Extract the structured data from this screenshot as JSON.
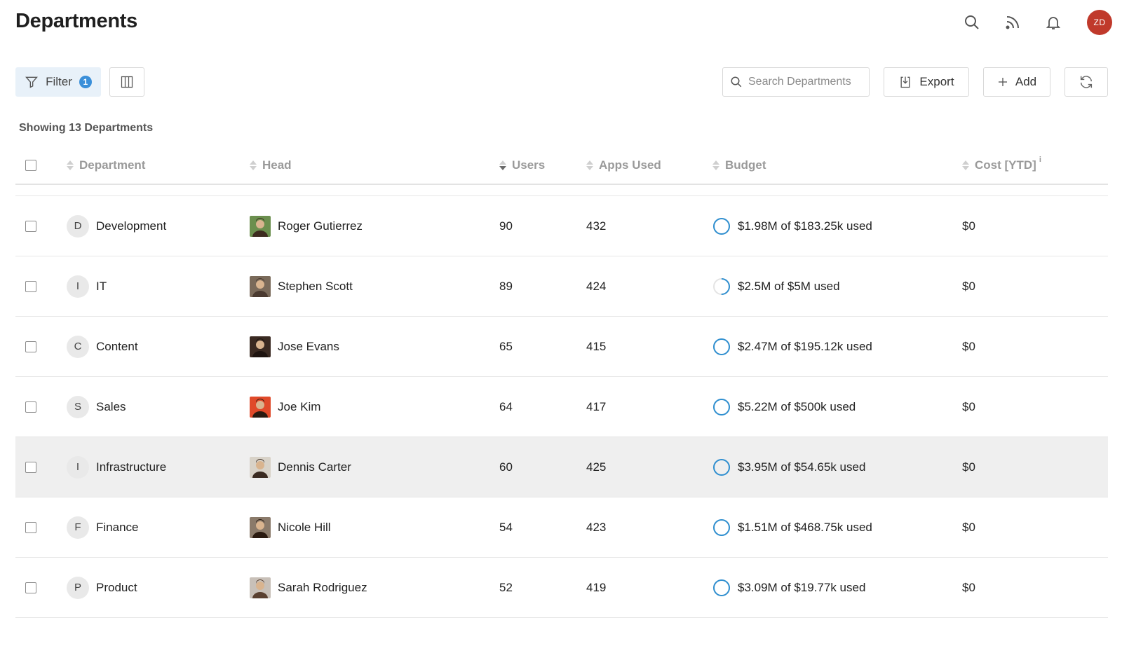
{
  "header": {
    "title": "Departments",
    "user_initials": "ZD",
    "icons": [
      "search-icon",
      "rss-feed-icon",
      "bell-icon"
    ]
  },
  "toolbar": {
    "filter_label": "Filter",
    "filter_count": "1",
    "search_placeholder": "Search Departments",
    "export_label": "Export",
    "add_label": "Add"
  },
  "summary": "Showing 13 Departments",
  "columns": {
    "department": "Department",
    "head": "Head",
    "users": "Users",
    "apps": "Apps Used",
    "budget": "Budget",
    "cost": "Cost [YTD]",
    "cost_info": "i"
  },
  "rows": [
    {
      "initial": "D",
      "name": "Development",
      "head": "Roger Gutierrez",
      "users": "90",
      "apps": "432",
      "budget_used": "$1.98M",
      "budget_total": "$183.25k",
      "budget_text": "$1.98M of $183.25k used",
      "budget_fraction": 1.0,
      "cost": "$0"
    },
    {
      "initial": "I",
      "name": "IT",
      "head": "Stephen Scott",
      "users": "89",
      "apps": "424",
      "budget_used": "$2.5M",
      "budget_total": "$5M",
      "budget_text": "$2.5M of $5M used",
      "budget_fraction": 0.5,
      "cost": "$0"
    },
    {
      "initial": "C",
      "name": "Content",
      "head": "Jose Evans",
      "users": "65",
      "apps": "415",
      "budget_used": "$2.47M",
      "budget_total": "$195.12k",
      "budget_text": "$2.47M of $195.12k used",
      "budget_fraction": 1.0,
      "cost": "$0"
    },
    {
      "initial": "S",
      "name": "Sales",
      "head": "Joe Kim",
      "users": "64",
      "apps": "417",
      "budget_used": "$5.22M",
      "budget_total": "$500k",
      "budget_text": "$5.22M of $500k used",
      "budget_fraction": 1.0,
      "cost": "$0"
    },
    {
      "initial": "I",
      "name": "Infrastructure",
      "head": "Dennis Carter",
      "users": "60",
      "apps": "425",
      "budget_used": "$3.95M",
      "budget_total": "$54.65k",
      "budget_text": "$3.95M of $54.65k used",
      "budget_fraction": 1.0,
      "cost": "$0"
    },
    {
      "initial": "F",
      "name": "Finance",
      "head": "Nicole Hill",
      "users": "54",
      "apps": "423",
      "budget_used": "$1.51M",
      "budget_total": "$468.75k",
      "budget_text": "$1.51M of $468.75k used",
      "budget_fraction": 1.0,
      "cost": "$0"
    },
    {
      "initial": "P",
      "name": "Product",
      "head": "Sarah Rodriguez",
      "users": "52",
      "apps": "419",
      "budget_used": "$3.09M",
      "budget_total": "$19.77k",
      "budget_text": "$3.09M of $19.77k used",
      "budget_fraction": 1.0,
      "cost": "$0"
    }
  ],
  "colors": {
    "accent": "#3a8fd9",
    "budget_ring": "#2f8fd0",
    "avatar": "#c0392b",
    "hover_row": "#efefef"
  }
}
